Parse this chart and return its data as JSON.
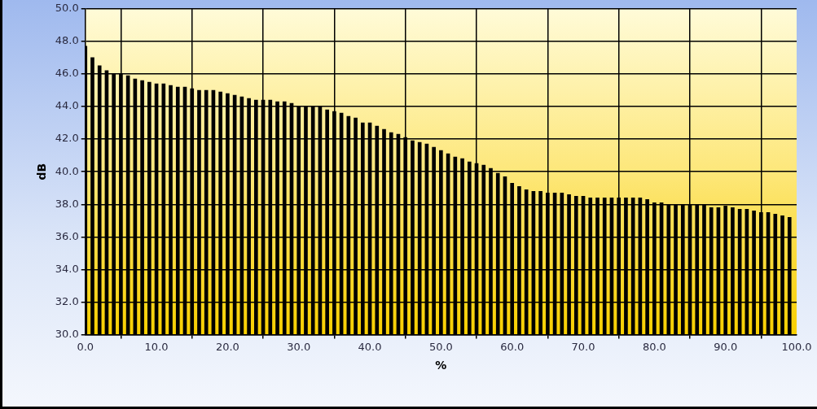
{
  "chart_data": {
    "type": "bar",
    "xlabel": "%",
    "ylabel": "dB",
    "x": [
      0,
      1,
      2,
      3,
      4,
      5,
      6,
      7,
      8,
      9,
      10,
      11,
      12,
      13,
      14,
      15,
      16,
      17,
      18,
      19,
      20,
      21,
      22,
      23,
      24,
      25,
      26,
      27,
      28,
      29,
      30,
      31,
      32,
      33,
      34,
      35,
      36,
      37,
      38,
      39,
      40,
      41,
      42,
      43,
      44,
      45,
      46,
      47,
      48,
      49,
      50,
      51,
      52,
      53,
      54,
      55,
      56,
      57,
      58,
      59,
      60,
      61,
      62,
      63,
      64,
      65,
      66,
      67,
      68,
      69,
      70,
      71,
      72,
      73,
      74,
      75,
      76,
      77,
      78,
      79,
      80,
      81,
      82,
      83,
      84,
      85,
      86,
      87,
      88,
      89,
      90,
      91,
      92,
      93,
      94,
      95,
      96,
      97,
      98,
      99
    ],
    "values": [
      47.7,
      47.0,
      46.5,
      46.2,
      46.0,
      46.0,
      45.9,
      45.7,
      45.6,
      45.5,
      45.4,
      45.4,
      45.3,
      45.2,
      45.2,
      45.1,
      45.0,
      45.0,
      45.0,
      44.9,
      44.8,
      44.7,
      44.6,
      44.5,
      44.4,
      44.4,
      44.4,
      44.3,
      44.3,
      44.2,
      44.0,
      44.0,
      44.0,
      44.0,
      43.8,
      43.7,
      43.6,
      43.4,
      43.3,
      43.0,
      43.0,
      42.8,
      42.6,
      42.4,
      42.3,
      42.1,
      41.9,
      41.8,
      41.7,
      41.5,
      41.3,
      41.1,
      40.9,
      40.8,
      40.6,
      40.5,
      40.4,
      40.2,
      39.9,
      39.7,
      39.3,
      39.1,
      38.9,
      38.8,
      38.8,
      38.7,
      38.7,
      38.7,
      38.6,
      38.5,
      38.5,
      38.4,
      38.4,
      38.4,
      38.4,
      38.4,
      38.4,
      38.4,
      38.4,
      38.3,
      38.1,
      38.1,
      38.0,
      38.0,
      38.0,
      38.0,
      38.0,
      38.0,
      37.8,
      37.8,
      37.9,
      37.8,
      37.7,
      37.7,
      37.6,
      37.5,
      37.5,
      37.4,
      37.3,
      37.2
    ],
    "color": "#000000",
    "xlim": [
      0,
      100
    ],
    "xticks": [
      {
        "value": 0,
        "label": "0.0"
      },
      {
        "value": 10,
        "label": "10.0"
      },
      {
        "value": 20,
        "label": "20.0"
      },
      {
        "value": 30,
        "label": "30.0"
      },
      {
        "value": 40,
        "label": "40.0"
      },
      {
        "value": 50,
        "label": "50.0"
      },
      {
        "value": 60,
        "label": "60.0"
      },
      {
        "value": 70,
        "label": "70.0"
      },
      {
        "value": 80,
        "label": "80.0"
      },
      {
        "value": 90,
        "label": "90.0"
      },
      {
        "value": 100,
        "label": "100.0"
      }
    ],
    "ylim": [
      30,
      50
    ],
    "yticks": [
      {
        "value": 30,
        "label": "30.0"
      },
      {
        "value": 32,
        "label": "32.0"
      },
      {
        "value": 34,
        "label": "34.0"
      },
      {
        "value": 36,
        "label": "36.0"
      },
      {
        "value": 38,
        "label": "38.0"
      },
      {
        "value": 40,
        "label": "40.0"
      },
      {
        "value": 42,
        "label": "42.0"
      },
      {
        "value": 44,
        "label": "44.0"
      },
      {
        "value": 46,
        "label": "46.0"
      },
      {
        "value": 48,
        "label": "48.0"
      },
      {
        "value": 50,
        "label": "50.0"
      }
    ],
    "grid": true
  }
}
